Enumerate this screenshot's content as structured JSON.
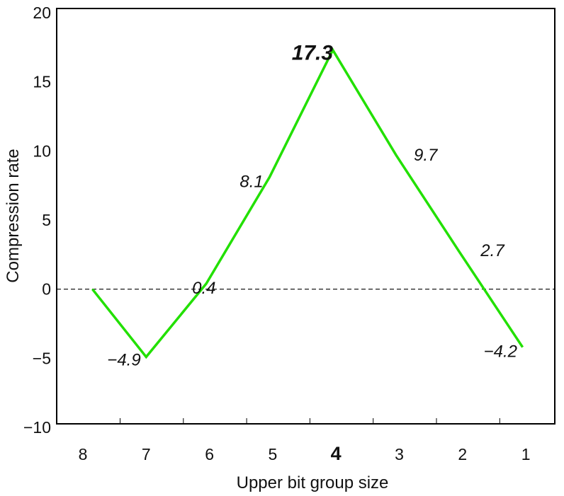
{
  "chart_data": {
    "type": "line",
    "xlabel": "Upper bit group size",
    "ylabel": "Compression rate",
    "categories": [
      "8",
      "7",
      "6",
      "5",
      "4",
      "3",
      "2",
      "1"
    ],
    "ylim": [
      -10,
      20
    ],
    "yticks": [
      -10,
      -5,
      0,
      5,
      10,
      15,
      20
    ],
    "ytick_labels": [
      "−10",
      "−5",
      "0",
      "5",
      "10",
      "15",
      "20"
    ],
    "emphasized_category": "4",
    "reference_line": {
      "y": 0,
      "style": "dashed"
    },
    "grid": false,
    "series": [
      {
        "color": "#22e000",
        "x": [
          0.15,
          1,
          1.95,
          2.95,
          3.95,
          4.95,
          5.95,
          6.95
        ],
        "values": [
          0,
          -4.9,
          0.4,
          8.1,
          17.3,
          9.7,
          2.7,
          -4.2
        ]
      }
    ],
    "data_labels": [
      {
        "text": "−4.9",
        "value": -4.9
      },
      {
        "text": "0.4",
        "value": 0.4
      },
      {
        "text": "8.1",
        "value": 8.1
      },
      {
        "text": "17.3",
        "value": 17.3,
        "emphasized": true
      },
      {
        "text": "9.7",
        "value": 9.7
      },
      {
        "text": "2.7",
        "value": 2.7
      },
      {
        "text": "−4.2",
        "value": -4.2
      }
    ]
  }
}
